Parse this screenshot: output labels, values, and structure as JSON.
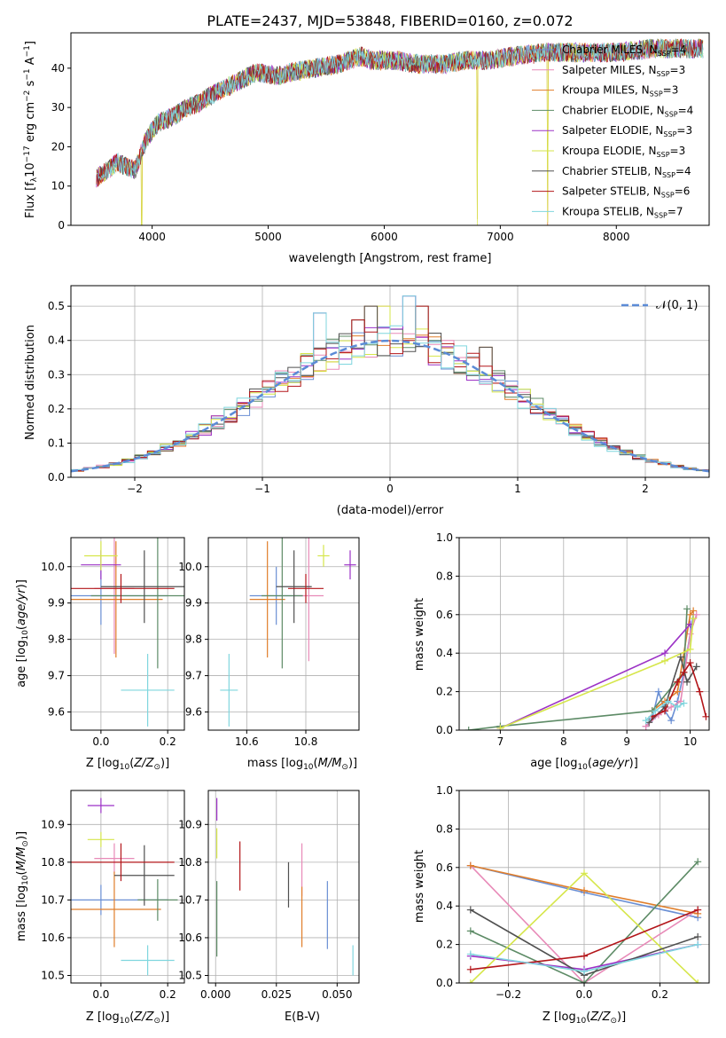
{
  "figure_title": "PLATE=2437, MJD=53848, FIBERID=0160, z=0.072",
  "legend": {
    "labels": [
      "Chabrier MILES, N",
      "Salpeter MILES, N",
      "Kroupa MILES, N",
      "Chabrier ELODIE, N",
      "Salpeter ELODIE, N",
      "Kroupa ELODIE, N",
      "Chabrier STELIB, N",
      "Salpeter STELIB, N",
      "Kroupa STELIB, N"
    ],
    "sub": "SSP",
    "counts": [
      "=4",
      "=3",
      "=3",
      "=4",
      "=3",
      "=3",
      "=4",
      "=6",
      "=7"
    ],
    "colors": [
      "#6a8fd4",
      "#e88ab8",
      "#e07e2a",
      "#5d8b66",
      "#9c32c6",
      "#d6e64a",
      "#505050",
      "#b3161a",
      "#7fd6de"
    ]
  },
  "chart_data": [
    {
      "type": "line",
      "name": "spectrum",
      "xlabel": "wavelength [Angstrom, rest frame]",
      "ylabel": {
        "a": "Flux [f",
        "sub1": "λ",
        "b": "10",
        "sup1": "−17",
        "c": " erg cm",
        "sup2": "−2",
        "d": " s",
        "sup3": "−1",
        "e": " A",
        "sup4": "−1",
        "f": "]"
      },
      "xlim": [
        3300,
        8800
      ],
      "ylim": [
        0,
        49
      ],
      "xticks": [
        "4000",
        "5000",
        "6000",
        "7000",
        "8000"
      ],
      "xtick_values": [
        4000,
        5000,
        6000,
        7000,
        8000
      ],
      "yticks": [
        "0",
        "10",
        "20",
        "30",
        "40"
      ],
      "ytick_values": [
        0,
        10,
        20,
        30,
        40
      ],
      "x_range": [
        3520,
        8750
      ],
      "continuum": [
        [
          3520,
          12
        ],
        [
          3700,
          16
        ],
        [
          3850,
          14
        ],
        [
          3950,
          22
        ],
        [
          4050,
          26
        ],
        [
          4200,
          28
        ],
        [
          4300,
          30
        ],
        [
          4400,
          31
        ],
        [
          4500,
          33
        ],
        [
          4700,
          36
        ],
        [
          4900,
          39
        ],
        [
          5100,
          38
        ],
        [
          5200,
          39
        ],
        [
          5400,
          40
        ],
        [
          5600,
          41
        ],
        [
          5800,
          43
        ],
        [
          5900,
          42
        ],
        [
          6100,
          42
        ],
        [
          6300,
          41
        ],
        [
          6500,
          41
        ],
        [
          6700,
          42
        ],
        [
          6900,
          42
        ],
        [
          7100,
          43
        ],
        [
          7400,
          44
        ],
        [
          7700,
          44
        ],
        [
          8000,
          44
        ],
        [
          8300,
          45
        ],
        [
          8600,
          45
        ],
        [
          8750,
          45
        ]
      ],
      "spikes": [
        [
          3910,
          -32
        ],
        [
          6800,
          -42
        ],
        [
          7410,
          -44
        ]
      ]
    },
    {
      "type": "histogram",
      "name": "residuals",
      "xlabel": "(data-model)/error",
      "ylabel": "Normed distribution",
      "xlim": [
        -2.5,
        2.5
      ],
      "ylim": [
        0,
        0.56
      ],
      "xticks": [
        "−2",
        "−1",
        "0",
        "1",
        "2"
      ],
      "xtick_values": [
        -2,
        -1,
        0,
        1,
        2
      ],
      "yticks": [
        "0.0",
        "0.1",
        "0.2",
        "0.3",
        "0.4",
        "0.5"
      ],
      "ytick_values": [
        0,
        0.1,
        0.2,
        0.3,
        0.4,
        0.5
      ],
      "legend": "𝒩(0, 1)",
      "bin_width": 0.1,
      "notable_peaks": [
        [
          -0.5,
          0.48
        ],
        [
          -0.2,
          0.46
        ],
        [
          -0.1,
          0.5
        ],
        [
          0.0,
          0.5
        ],
        [
          0.2,
          0.53
        ],
        [
          0.3,
          0.5
        ],
        [
          0.8,
          0.38
        ]
      ]
    },
    {
      "type": "scatter",
      "name": "age_vs_Z",
      "xlabel": "Z [log10(Z/Z⊙)]",
      "ylabel": "age  [log10(age/yr)]",
      "xlim": [
        -0.09,
        0.25
      ],
      "ylim": [
        9.55,
        10.08
      ],
      "xticks": [
        "0.0",
        "0.2"
      ],
      "xtick_values": [
        0,
        0.2
      ],
      "yticks": [
        "9.6",
        "9.7",
        "9.8",
        "9.9",
        "10.0"
      ],
      "ytick_values": [
        9.6,
        9.7,
        9.8,
        9.9,
        10.0
      ],
      "points": [
        {
          "x": 0.0,
          "y": 9.92,
          "xerr": 0.2,
          "yerr": 0.08
        },
        {
          "x": 0.04,
          "y": 9.94,
          "xerr": 0.06,
          "yerr": 0.18
        },
        {
          "x": 0.045,
          "y": 9.91,
          "xerr": 0.14,
          "yerr": 0.16
        },
        {
          "x": 0.17,
          "y": 9.92,
          "xerr": 0.2,
          "yerr": 0.2
        },
        {
          "x": 0.0,
          "y": 10.005,
          "xerr": 0.06,
          "yerr": 0.04
        },
        {
          "x": 0.0,
          "y": 10.03,
          "xerr": 0.05,
          "yerr": 0.04
        },
        {
          "x": 0.13,
          "y": 9.945,
          "xerr": 0.13,
          "yerr": 0.1
        },
        {
          "x": 0.06,
          "y": 9.94,
          "xerr": 0.16,
          "yerr": 0.04
        },
        {
          "x": 0.14,
          "y": 9.66,
          "xerr": 0.08,
          "yerr": 0.1
        }
      ]
    },
    {
      "type": "scatter",
      "name": "age_vs_mass",
      "xlabel": "mass [log10(M/M⊙)]",
      "ylabel": "",
      "xlim": [
        10.47,
        10.98
      ],
      "ylim": [
        9.55,
        10.08
      ],
      "xticks": [
        "10.6",
        "10.8"
      ],
      "xtick_values": [
        10.6,
        10.8
      ],
      "yticks": [
        "9.6",
        "9.7",
        "9.8",
        "9.9",
        "10.0"
      ],
      "ytick_values": [
        9.6,
        9.7,
        9.8,
        9.9,
        10.0
      ],
      "points": [
        {
          "x": 10.7,
          "y": 9.92,
          "xerr": 0.09,
          "yerr": 0.08
        },
        {
          "x": 10.81,
          "y": 9.92,
          "xerr": 0.05,
          "yerr": 0.18
        },
        {
          "x": 10.67,
          "y": 9.91,
          "xerr": 0.06,
          "yerr": 0.16
        },
        {
          "x": 10.72,
          "y": 9.92,
          "xerr": 0.07,
          "yerr": 0.2
        },
        {
          "x": 10.95,
          "y": 10.005,
          "xerr": 0.02,
          "yerr": 0.04
        },
        {
          "x": 10.86,
          "y": 10.03,
          "xerr": 0.02,
          "yerr": 0.03
        },
        {
          "x": 10.76,
          "y": 9.945,
          "xerr": 0.06,
          "yerr": 0.1
        },
        {
          "x": 10.8,
          "y": 9.94,
          "xerr": 0.06,
          "yerr": 0.04
        },
        {
          "x": 10.54,
          "y": 9.66,
          "xerr": 0.03,
          "yerr": 0.1
        }
      ]
    },
    {
      "type": "line",
      "name": "mass_weight_vs_age",
      "xlabel": "age  [log10(age/yr)]",
      "ylabel": "mass weight",
      "xlim": [
        6.35,
        10.3
      ],
      "ylim": [
        0,
        1
      ],
      "xticks": [
        "7",
        "8",
        "9",
        "10"
      ],
      "xtick_values": [
        7,
        8,
        9,
        10
      ],
      "yticks": [
        "0.0",
        "0.2",
        "0.4",
        "0.6",
        "0.8",
        "1.0"
      ],
      "ytick_values": [
        0,
        0.2,
        0.4,
        0.6,
        0.8,
        1.0
      ],
      "series": [
        {
          "values": [
            [
              9.3,
              0.02
            ],
            [
              9.4,
              0.06
            ],
            [
              9.5,
              0.2
            ],
            [
              9.6,
              0.1
            ],
            [
              9.7,
              0.05
            ],
            [
              9.8,
              0.15
            ],
            [
              9.9,
              0.3
            ],
            [
              10.05,
              0.6
            ]
          ]
        },
        {
          "values": [
            [
              9.3,
              0.02
            ],
            [
              9.5,
              0.08
            ],
            [
              9.7,
              0.12
            ],
            [
              9.85,
              0.15
            ],
            [
              10.0,
              0.5
            ],
            [
              10.1,
              0.6
            ]
          ]
        },
        {
          "values": [
            [
              9.4,
              0.1
            ],
            [
              9.6,
              0.15
            ],
            [
              9.8,
              0.2
            ],
            [
              10.0,
              0.6
            ],
            [
              10.05,
              0.62
            ]
          ]
        },
        {
          "values": [
            [
              6.5,
              0.0
            ],
            [
              7.0,
              0.02
            ],
            [
              9.4,
              0.1
            ],
            [
              9.9,
              0.3
            ],
            [
              9.95,
              0.63
            ]
          ]
        },
        {
          "values": [
            [
              7.0,
              0.01
            ],
            [
              9.6,
              0.4
            ],
            [
              10.0,
              0.55
            ]
          ]
        },
        {
          "values": [
            [
              7.0,
              0.01
            ],
            [
              9.6,
              0.36
            ],
            [
              10.0,
              0.42
            ],
            [
              10.05,
              0.58
            ]
          ]
        },
        {
          "values": [
            [
              9.35,
              0.04
            ],
            [
              9.6,
              0.12
            ],
            [
              9.85,
              0.38
            ],
            [
              9.95,
              0.25
            ],
            [
              10.1,
              0.33
            ]
          ]
        },
        {
          "values": [
            [
              9.4,
              0.07
            ],
            [
              9.6,
              0.1
            ],
            [
              9.8,
              0.25
            ],
            [
              9.9,
              0.3
            ],
            [
              10.0,
              0.35
            ],
            [
              10.15,
              0.2
            ],
            [
              10.25,
              0.07
            ]
          ]
        },
        {
          "values": [
            [
              9.3,
              0.05
            ],
            [
              9.45,
              0.1
            ],
            [
              9.65,
              0.15
            ],
            [
              9.8,
              0.12
            ],
            [
              9.9,
              0.14
            ]
          ]
        }
      ]
    },
    {
      "type": "scatter",
      "name": "mass_vs_Z",
      "xlabel": "Z [log10(Z/Z⊙)]",
      "ylabel": "mass [log10(M/M⊙)]",
      "xlim": [
        -0.09,
        0.25
      ],
      "ylim": [
        10.48,
        10.99
      ],
      "xticks": [
        "0.0",
        "0.2"
      ],
      "xtick_values": [
        0,
        0.2
      ],
      "yticks": [
        "10.5",
        "10.6",
        "10.7",
        "10.8",
        "10.9"
      ],
      "ytick_values": [
        10.5,
        10.6,
        10.7,
        10.8,
        10.9
      ],
      "points": [
        {
          "x": 0.0,
          "y": 10.7,
          "xerr": 0.2,
          "yerr": 0.04
        },
        {
          "x": 0.04,
          "y": 10.81,
          "xerr": 0.06,
          "yerr": 0.04
        },
        {
          "x": 0.04,
          "y": 10.675,
          "xerr": 0.14,
          "yerr": 0.1
        },
        {
          "x": 0.17,
          "y": 10.7,
          "xerr": 0.06,
          "yerr": 0.055
        },
        {
          "x": 0.0,
          "y": 10.95,
          "xerr": 0.04,
          "yerr": 0.02
        },
        {
          "x": 0.0,
          "y": 10.86,
          "xerr": 0.04,
          "yerr": 0.02
        },
        {
          "x": 0.13,
          "y": 10.765,
          "xerr": 0.09,
          "yerr": 0.08
        },
        {
          "x": 0.06,
          "y": 10.8,
          "xerr": 0.16,
          "yerr": 0.05
        },
        {
          "x": 0.14,
          "y": 10.54,
          "xerr": 0.08,
          "yerr": 0.04
        }
      ]
    },
    {
      "type": "scatter",
      "name": "mass_vs_ebv",
      "xlabel": "E(B-V)",
      "ylabel": "",
      "xlim": [
        -0.003,
        0.059
      ],
      "ylim": [
        10.48,
        10.99
      ],
      "xticks": [
        "0.000",
        "0.025",
        "0.050"
      ],
      "xtick_values": [
        0,
        0.025,
        0.05
      ],
      "yticks": [
        "10.5",
        "10.6",
        "10.7",
        "10.8",
        "10.9"
      ],
      "ytick_values": [
        10.5,
        10.6,
        10.7,
        10.8,
        10.9
      ],
      "points": [
        {
          "x": 0.046,
          "y": 10.66,
          "xerr": 0,
          "yerr": 0.09
        },
        {
          "x": 0.0355,
          "y": 10.78,
          "xerr": 0,
          "yerr": 0.07
        },
        {
          "x": 0.0355,
          "y": 10.655,
          "xerr": 0,
          "yerr": 0.08
        },
        {
          "x": 0.0005,
          "y": 10.65,
          "xerr": 0,
          "yerr": 0.1
        },
        {
          "x": 0.0005,
          "y": 10.94,
          "xerr": 0,
          "yerr": 0.03
        },
        {
          "x": 0.0005,
          "y": 10.85,
          "xerr": 0,
          "yerr": 0.04
        },
        {
          "x": 0.03,
          "y": 10.74,
          "xerr": 0,
          "yerr": 0.06
        },
        {
          "x": 0.01,
          "y": 10.79,
          "xerr": 0,
          "yerr": 0.065
        },
        {
          "x": 0.0565,
          "y": 10.54,
          "xerr": 0,
          "yerr": 0.04
        }
      ]
    },
    {
      "type": "line",
      "name": "mass_weight_vs_Z",
      "xlabel": "Z [log10(Z/Z⊙)]",
      "ylabel": "mass weight",
      "xlim": [
        -0.33,
        0.33
      ],
      "ylim": [
        0,
        1
      ],
      "xticks": [
        "−0.2",
        "0.0",
        "0.2"
      ],
      "xtick_values": [
        -0.2,
        0,
        0.2
      ],
      "yticks": [
        "0.0",
        "0.2",
        "0.4",
        "0.6",
        "0.8",
        "1.0"
      ],
      "ytick_values": [
        0,
        0.2,
        0.4,
        0.6,
        0.8,
        1.0
      ],
      "series": [
        {
          "values": [
            [
              -0.3,
              0.61
            ],
            [
              0.0,
              0.47
            ],
            [
              0.3,
              0.34
            ]
          ]
        },
        {
          "values": [
            [
              -0.3,
              0.61
            ],
            [
              0.0,
              0.0
            ],
            [
              0.3,
              0.38
            ]
          ]
        },
        {
          "values": [
            [
              -0.3,
              0.61
            ],
            [
              0.0,
              0.48
            ],
            [
              0.3,
              0.36
            ]
          ]
        },
        {
          "values": [
            [
              -0.3,
              0.27
            ],
            [
              0.0,
              0.0
            ],
            [
              0.3,
              0.63
            ]
          ]
        },
        {
          "values": [
            [
              -0.3,
              0.14
            ],
            [
              0.0,
              0.07
            ],
            [
              0.3,
              0.2
            ]
          ]
        },
        {
          "values": [
            [
              -0.3,
              0.0
            ],
            [
              0.0,
              0.57
            ],
            [
              0.3,
              0.0
            ]
          ]
        },
        {
          "values": [
            [
              -0.3,
              0.38
            ],
            [
              0.0,
              0.04
            ],
            [
              0.3,
              0.24
            ]
          ]
        },
        {
          "values": [
            [
              -0.3,
              0.07
            ],
            [
              0.0,
              0.14
            ],
            [
              0.3,
              0.38
            ]
          ]
        },
        {
          "values": [
            [
              -0.3,
              0.15
            ],
            [
              0.0,
              0.06
            ],
            [
              0.3,
              0.2
            ]
          ]
        }
      ]
    }
  ]
}
